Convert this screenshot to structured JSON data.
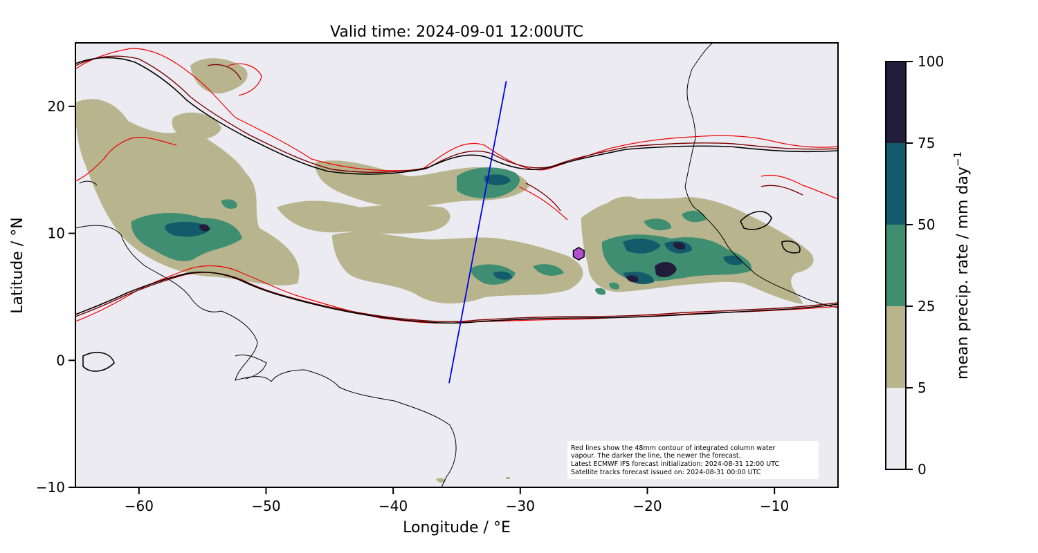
{
  "title": "Valid time: 2024-09-01 12:00UTC",
  "axes": {
    "xlabel": "Longitude / °E",
    "ylabel": "Latitude / °N",
    "xlim": [
      -65,
      -5
    ],
    "ylim": [
      -10,
      25
    ],
    "xticks": [
      -60,
      -50,
      -40,
      -30,
      -20,
      -10
    ],
    "xtick_labels": [
      "−60",
      "−50",
      "−40",
      "−30",
      "−20",
      "−10"
    ],
    "yticks": [
      20,
      10,
      0,
      -10
    ],
    "ytick_labels": [
      "20",
      "10",
      "0",
      "−10"
    ]
  },
  "colorbar": {
    "label": "mean precip. rate / mm day",
    "label_superscript": "−1",
    "levels": [
      0,
      5,
      25,
      50,
      75,
      100
    ],
    "level_labels": [
      "0",
      "5",
      "25",
      "50",
      "75",
      "100"
    ],
    "colors": [
      "#ecebf2",
      "#b8b58e",
      "#3f8e72",
      "#135a6b",
      "#211c3a"
    ]
  },
  "annotation": {
    "lines": [
      "Red lines show the 48mm contour of integrated column water",
      "vapour. The darker the line, the newer the forecast.",
      "Latest ECMWF IFS forecast initialization: 2024-08-31 12:00 UTC",
      "Satellite tracks forecast issued on: 2024-08-31 00:00 UTC"
    ]
  },
  "satellite_track": {
    "color": "#0000ee",
    "start": {
      "lon": -35.6,
      "lat": -1.8
    },
    "end": {
      "lon": -31.1,
      "lat": 22.0
    }
  },
  "marker": {
    "shape": "hexagon",
    "color": "#b04fd0",
    "lon": -25.4,
    "lat": 8.4
  },
  "colors": {
    "background": "#ecebf2",
    "ivt_newest": "#000000",
    "ivt_mid": "#7a0000",
    "ivt_old": "#ee0000",
    "coastline": "#000000"
  }
}
